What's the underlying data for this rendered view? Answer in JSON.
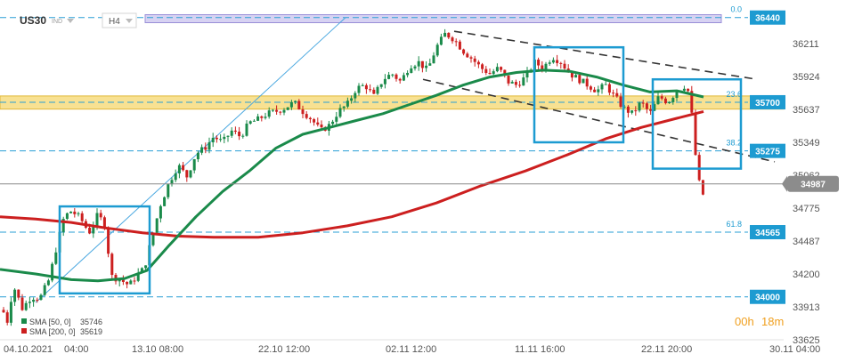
{
  "header": {
    "symbol": "US30",
    "symbol_type": "IND",
    "timeframe": "H4"
  },
  "timer": {
    "hours": "00h",
    "minutes": "18m"
  },
  "legend": [
    {
      "label": "SMA [50, 0]",
      "value": "35746",
      "color": "#1a8a4a"
    },
    {
      "label": "SMA [200, 0]",
      "value": "35619",
      "color": "#cc1f1f"
    }
  ],
  "colors": {
    "sma50": "#1a8a4a",
    "sma200": "#cc1f1f",
    "up_candle": "#1a8a4a",
    "down_candle": "#cc1f1f",
    "level_box": "#1d9bd1",
    "current_price_badge": "#8c8c8c",
    "resistance_zone": "#f5d76e",
    "top_zone": "#c9c3ee"
  },
  "chart_data": {
    "type": "candlestick",
    "x_tick_labels": [
      "04.10.2021",
      "04:00",
      "13.10 08:00",
      "22.10 12:00",
      "02.11 12:00",
      "11.11 16:00",
      "22.11 20:00",
      "30.11 04:00"
    ],
    "y_tick_labels": [
      "36211",
      "35924",
      "35637",
      "35349",
      "35062",
      "34775",
      "34487",
      "34200",
      "33913",
      "33625"
    ],
    "ylim": [
      33625,
      36500
    ],
    "current_price": "34987",
    "levels": [
      {
        "value": 36440,
        "label": "36440",
        "fib": "0.0"
      },
      {
        "value": 35700,
        "label": "35700",
        "fib": "23.6"
      },
      {
        "value": 35275,
        "label": "35275",
        "fib": "38.2"
      },
      {
        "value": 34565,
        "label": "34565",
        "fib": "61.8"
      },
      {
        "value": 34000,
        "label": "34000",
        "fib": ""
      }
    ],
    "zones": [
      {
        "name": "resistance-zone",
        "from": 35640,
        "to": 35755
      },
      {
        "name": "top-zone",
        "from": 36395,
        "to": 36465
      }
    ],
    "price_path": [
      [
        0,
        33950
      ],
      [
        8,
        33780
      ],
      [
        15,
        34100
      ],
      [
        25,
        33900
      ],
      [
        35,
        34000
      ],
      [
        45,
        33990
      ],
      [
        55,
        34150
      ],
      [
        63,
        34420
      ],
      [
        72,
        34700
      ],
      [
        80,
        34750
      ],
      [
        90,
        34690
      ],
      [
        100,
        34560
      ],
      [
        110,
        34720
      ],
      [
        118,
        34620
      ],
      [
        125,
        34180
      ],
      [
        135,
        34150
      ],
      [
        145,
        34100
      ],
      [
        155,
        34200
      ],
      [
        162,
        34250
      ],
      [
        170,
        34500
      ],
      [
        180,
        34800
      ],
      [
        190,
        35000
      ],
      [
        200,
        35150
      ],
      [
        210,
        35050
      ],
      [
        220,
        35250
      ],
      [
        230,
        35300
      ],
      [
        240,
        35400
      ],
      [
        250,
        35350
      ],
      [
        260,
        35450
      ],
      [
        270,
        35400
      ],
      [
        280,
        35520
      ],
      [
        290,
        35550
      ],
      [
        300,
        35600
      ],
      [
        310,
        35620
      ],
      [
        320,
        35650
      ],
      [
        330,
        35700
      ],
      [
        340,
        35620
      ],
      [
        350,
        35550
      ],
      [
        360,
        35450
      ],
      [
        370,
        35500
      ],
      [
        380,
        35620
      ],
      [
        390,
        35680
      ],
      [
        400,
        35820
      ],
      [
        410,
        35850
      ],
      [
        420,
        35750
      ],
      [
        430,
        35900
      ],
      [
        440,
        35950
      ],
      [
        450,
        35880
      ],
      [
        460,
        36020
      ],
      [
        470,
        36050
      ],
      [
        480,
        35980
      ],
      [
        490,
        36180
      ],
      [
        500,
        36300
      ],
      [
        510,
        36250
      ],
      [
        520,
        36150
      ],
      [
        530,
        36080
      ],
      [
        540,
        36000
      ],
      [
        550,
        35950
      ],
      [
        560,
        36000
      ],
      [
        570,
        35880
      ],
      [
        580,
        35850
      ],
      [
        590,
        35920
      ],
      [
        600,
        36050
      ],
      [
        610,
        36000
      ],
      [
        620,
        36100
      ],
      [
        630,
        36050
      ],
      [
        640,
        35950
      ],
      [
        650,
        35900
      ],
      [
        660,
        35850
      ],
      [
        670,
        35800
      ],
      [
        680,
        35850
      ],
      [
        690,
        35750
      ],
      [
        700,
        35650
      ],
      [
        710,
        35600
      ],
      [
        720,
        35700
      ],
      [
        730,
        35600
      ],
      [
        740,
        35750
      ],
      [
        750,
        35700
      ],
      [
        760,
        35800
      ],
      [
        770,
        35850
      ],
      [
        775,
        35750
      ],
      [
        780,
        35300
      ],
      [
        785,
        35000
      ],
      [
        790,
        34880
      ]
    ],
    "sma50_path": [
      [
        0,
        34240
      ],
      [
        40,
        34200
      ],
      [
        80,
        34150
      ],
      [
        110,
        34140
      ],
      [
        140,
        34160
      ],
      [
        165,
        34230
      ],
      [
        190,
        34450
      ],
      [
        220,
        34700
      ],
      [
        250,
        34920
      ],
      [
        280,
        35100
      ],
      [
        310,
        35300
      ],
      [
        340,
        35420
      ],
      [
        370,
        35480
      ],
      [
        400,
        35540
      ],
      [
        430,
        35600
      ],
      [
        460,
        35680
      ],
      [
        490,
        35760
      ],
      [
        520,
        35850
      ],
      [
        550,
        35920
      ],
      [
        580,
        35960
      ],
      [
        610,
        35980
      ],
      [
        640,
        35970
      ],
      [
        670,
        35920
      ],
      [
        700,
        35850
      ],
      [
        730,
        35790
      ],
      [
        760,
        35800
      ],
      [
        790,
        35746
      ]
    ],
    "sma200_path": [
      [
        0,
        34700
      ],
      [
        40,
        34680
      ],
      [
        80,
        34650
      ],
      [
        120,
        34600
      ],
      [
        160,
        34560
      ],
      [
        200,
        34530
      ],
      [
        240,
        34520
      ],
      [
        290,
        34520
      ],
      [
        340,
        34560
      ],
      [
        390,
        34620
      ],
      [
        440,
        34700
      ],
      [
        490,
        34820
      ],
      [
        540,
        34970
      ],
      [
        590,
        35100
      ],
      [
        640,
        35250
      ],
      [
        680,
        35380
      ],
      [
        720,
        35480
      ],
      [
        760,
        35560
      ],
      [
        790,
        35619
      ]
    ],
    "boxes": [
      {
        "name": "range-box-1",
        "x0": 67,
        "x1": 168,
        "y_top": 34790,
        "y_bottom": 34030
      },
      {
        "name": "range-box-2",
        "x0": 600,
        "x1": 700,
        "y_top": 36180,
        "y_bottom": 35350
      },
      {
        "name": "range-box-3",
        "x0": 733,
        "x1": 832,
        "y_top": 35900,
        "y_bottom": 35120
      }
    ],
    "trendlines": [
      {
        "name": "upper-trendline",
        "from": [
          510,
          36320
        ],
        "to": [
          850,
          35900
        ]
      },
      {
        "name": "lower-trendline",
        "from": [
          475,
          35900
        ],
        "to": [
          870,
          35180
        ]
      },
      {
        "name": "fib-diagonal",
        "from": [
          40,
          33950
        ],
        "to": [
          388,
          36440
        ]
      }
    ]
  }
}
